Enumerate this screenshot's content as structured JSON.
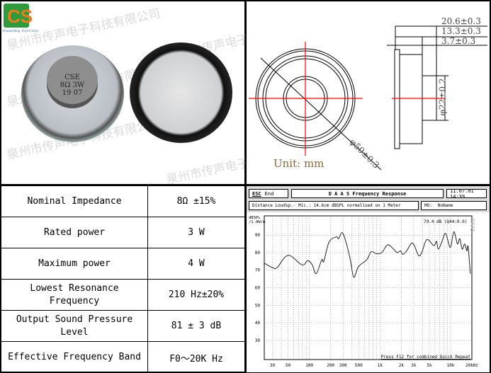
{
  "brand": {
    "logo_text": "CS",
    "logo_subtitle": "Chuansheng Electronic",
    "watermark": "泉州市传声电子科技有限公司"
  },
  "product_label": {
    "line1": "CSE",
    "line2": "8Ω 3W",
    "line3": "19 07"
  },
  "drawing": {
    "dim_total_depth": "20.6±0.3",
    "dim_magnet_depth": "13.3±0.3",
    "dim_frame": "3.7±0.3",
    "dim_magnet_dia": "φ22±0.2",
    "dim_outer_dia": "φ50±0.3",
    "unit": "Unit: mm",
    "accent_color": "#ff0000"
  },
  "specs": [
    {
      "label": "Nominal Impedance",
      "value": "8Ω ±15%"
    },
    {
      "label": "Rated power",
      "value": "3 W"
    },
    {
      "label": "Maximum power",
      "value": "4 W"
    },
    {
      "label": "Lowest Resonance Frequency",
      "value": "210 Hz±20%"
    },
    {
      "label": "Output Sound Pressure Level",
      "value": "81 ± 3 dB"
    },
    {
      "label": "Effective Frequency Band",
      "value": "F0～20K Hz"
    }
  ],
  "chart_header": {
    "esc": "ESC",
    "end": "End",
    "title": "D A A S   Frequency Response",
    "date": "11.07.01 14:39",
    "info": "Distance Loudsp.- Mic.: 14.6cm dBSPL normalised on 1 Meter",
    "mo_label": "MO:",
    "mo_value": "NoName",
    "readout": "79.4 dB (Q44:0.0)",
    "brand_vertical": "DAAS",
    "footer": "Press F12 for combined Quick Repeat"
  },
  "chart_data": {
    "type": "line",
    "ylabel": "dBSPL /1.0W/m",
    "xscale": "log",
    "xlim": [
      23,
      20000
    ],
    "ylim": [
      19,
      101
    ],
    "grid": true,
    "yticks": [
      30,
      40,
      50,
      60,
      70,
      80,
      90
    ],
    "xticks": [
      {
        "v": 30,
        "l": "30"
      },
      {
        "v": 50,
        "l": "50"
      },
      {
        "v": 100,
        "l": "100"
      },
      {
        "v": 200,
        "l": "200"
      },
      {
        "v": 300,
        "l": "300"
      },
      {
        "v": 500,
        "l": "500"
      },
      {
        "v": 1000,
        "l": "1k"
      },
      {
        "v": 2000,
        "l": "2k"
      },
      {
        "v": 3000,
        "l": "3k"
      },
      {
        "v": 5000,
        "l": "5k"
      },
      {
        "v": 10000,
        "l": "10k"
      },
      {
        "v": 20000,
        "l": "20kHz"
      }
    ],
    "x": [
      23,
      30,
      35,
      50,
      79,
      95,
      110,
      125,
      150,
      160,
      190,
      240,
      260,
      290,
      325,
      380,
      425,
      495,
      650,
      750,
      880,
      1060,
      1280,
      1560,
      1750,
      1960,
      2100,
      2380,
      2900,
      3500,
      3900,
      4600,
      5800,
      6300,
      6700,
      7500,
      8500,
      9900,
      11100,
      12500,
      13500,
      14600,
      15800,
      17000,
      17700,
      19000
    ],
    "y": [
      74,
      71.5,
      71.5,
      78.5,
      73,
      75.5,
      73,
      68,
      76,
      75,
      86,
      89,
      88,
      91.5,
      87,
      76,
      66,
      72,
      76,
      80.5,
      79.5,
      80,
      84.5,
      82,
      80,
      81,
      79,
      81,
      85.5,
      78.5,
      80,
      87.5,
      84,
      86.5,
      82,
      86,
      91,
      83,
      92,
      85,
      88,
      82,
      85,
      81,
      83.5,
      68
    ]
  }
}
